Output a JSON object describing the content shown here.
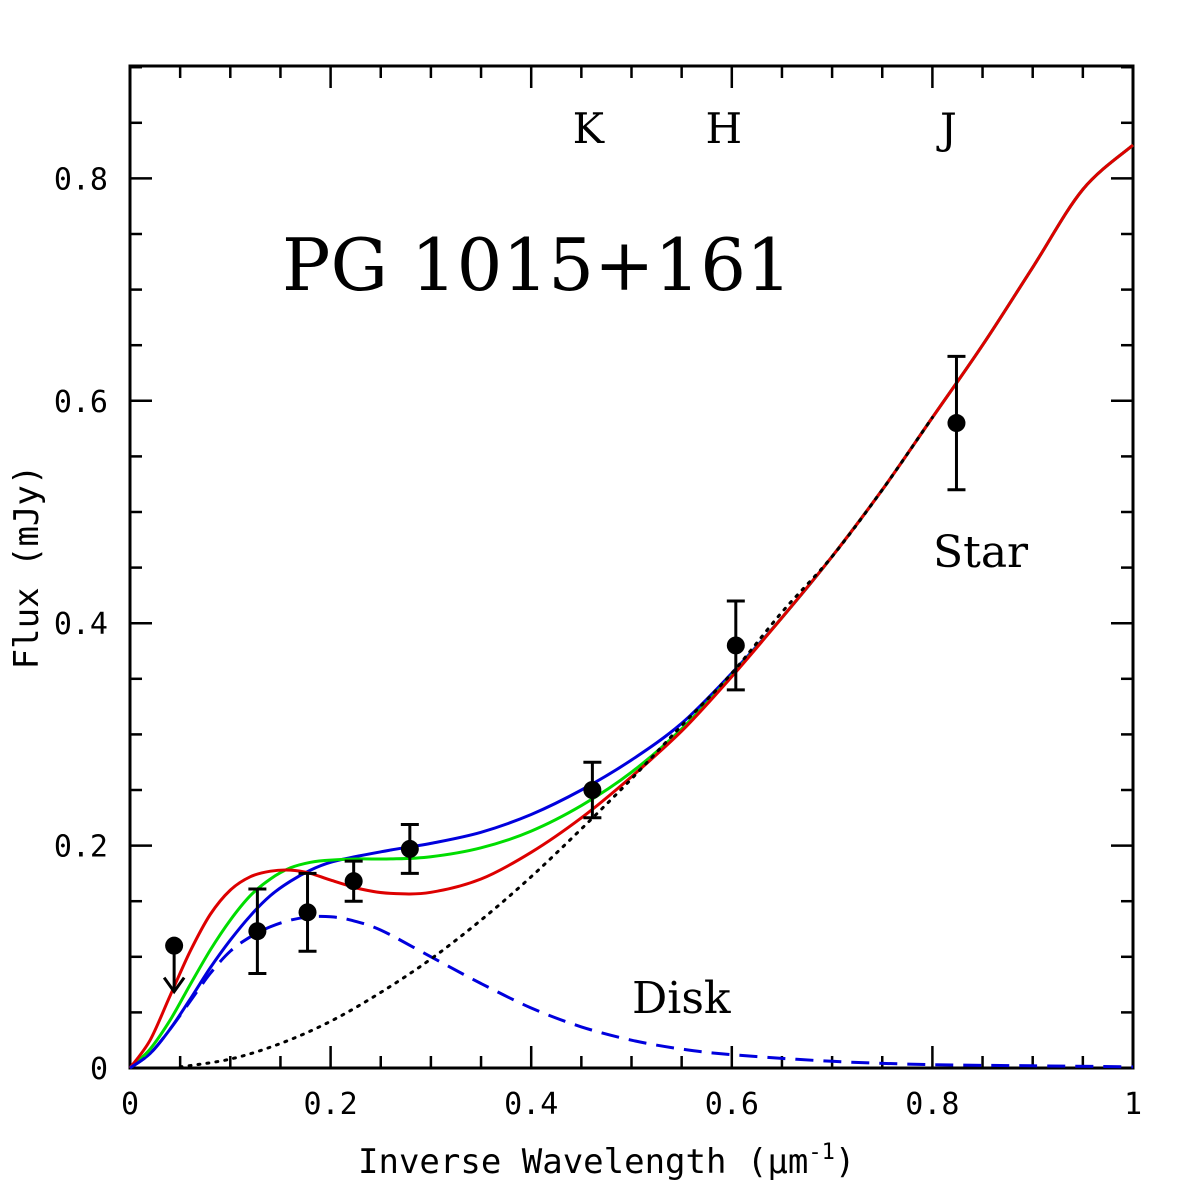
{
  "chart_data": {
    "type": "line",
    "title": "",
    "xlabel": "Inverse Wavelength (μm",
    "xlabel_exponent": "-1",
    "xlabel_close": ")",
    "ylabel": "Flux (mJy)",
    "xlim": [
      0,
      1
    ],
    "ylim": [
      0,
      0.9
    ],
    "xticks": [
      {
        "v": 0,
        "label": "0"
      },
      {
        "v": 0.2,
        "label": "0.2"
      },
      {
        "v": 0.4,
        "label": "0.4"
      },
      {
        "v": 0.6,
        "label": "0.6"
      },
      {
        "v": 0.8,
        "label": "0.8"
      },
      {
        "v": 1,
        "label": "1"
      }
    ],
    "yticks": [
      {
        "v": 0,
        "label": "0"
      },
      {
        "v": 0.2,
        "label": "0.2"
      },
      {
        "v": 0.4,
        "label": "0.4"
      },
      {
        "v": 0.6,
        "label": "0.6"
      },
      {
        "v": 0.8,
        "label": "0.8"
      }
    ],
    "grid": false,
    "annotations": {
      "object": "PG 1015+161",
      "star": "Star",
      "disk": "Disk",
      "bands": [
        {
          "label": "K",
          "x": 0.457
        },
        {
          "label": "H",
          "x": 0.592
        },
        {
          "label": "J",
          "x": 0.816
        }
      ]
    },
    "points": [
      {
        "x": 0.044,
        "y": 0.11,
        "upper_limit": true
      },
      {
        "x": 0.127,
        "y": 0.123,
        "yerr": 0.038
      },
      {
        "x": 0.177,
        "y": 0.14,
        "yerr": 0.035
      },
      {
        "x": 0.223,
        "y": 0.168,
        "yerr": 0.018
      },
      {
        "x": 0.279,
        "y": 0.197,
        "yerr": 0.022
      },
      {
        "x": 0.461,
        "y": 0.25,
        "yerr": 0.025
      },
      {
        "x": 0.604,
        "y": 0.38,
        "yerr": 0.04
      },
      {
        "x": 0.824,
        "y": 0.58,
        "yerr": 0.06
      }
    ],
    "series": [
      {
        "color": "#0000dd",
        "style": "solid",
        "x": [
          0,
          0.02,
          0.04,
          0.06,
          0.08,
          0.1,
          0.12,
          0.14,
          0.16,
          0.18,
          0.2,
          0.23,
          0.26,
          0.3,
          0.35,
          0.4,
          0.45,
          0.5,
          0.55,
          0.6,
          0.65,
          0.7,
          0.75,
          0.8,
          0.85,
          0.9,
          0.95,
          1.0
        ],
        "y": [
          0,
          0.013,
          0.035,
          0.062,
          0.09,
          0.115,
          0.137,
          0.155,
          0.168,
          0.178,
          0.185,
          0.191,
          0.196,
          0.202,
          0.212,
          0.228,
          0.25,
          0.277,
          0.31,
          0.355,
          0.405,
          0.46,
          0.52,
          0.585,
          0.65,
          0.72,
          0.79,
          0.83
        ]
      },
      {
        "color": "#00dd00",
        "style": "solid",
        "x": [
          0,
          0.02,
          0.04,
          0.06,
          0.08,
          0.1,
          0.12,
          0.14,
          0.16,
          0.18,
          0.2,
          0.23,
          0.26,
          0.3,
          0.35,
          0.4,
          0.45,
          0.5,
          0.55,
          0.6,
          0.65,
          0.7,
          0.75,
          0.8,
          0.85,
          0.9,
          0.95,
          1.0
        ],
        "y": [
          0,
          0.017,
          0.043,
          0.075,
          0.106,
          0.133,
          0.155,
          0.17,
          0.18,
          0.185,
          0.187,
          0.188,
          0.188,
          0.19,
          0.198,
          0.213,
          0.236,
          0.266,
          0.305,
          0.353,
          0.405,
          0.46,
          0.52,
          0.585,
          0.65,
          0.72,
          0.79,
          0.83
        ]
      },
      {
        "color": "#dd0000",
        "style": "solid",
        "x": [
          0,
          0.02,
          0.04,
          0.06,
          0.08,
          0.1,
          0.12,
          0.14,
          0.16,
          0.18,
          0.2,
          0.23,
          0.26,
          0.3,
          0.35,
          0.4,
          0.45,
          0.5,
          0.55,
          0.6,
          0.65,
          0.7,
          0.75,
          0.8,
          0.85,
          0.9,
          0.95,
          1.0
        ],
        "y": [
          0,
          0.025,
          0.065,
          0.105,
          0.138,
          0.16,
          0.172,
          0.177,
          0.178,
          0.175,
          0.169,
          0.161,
          0.157,
          0.158,
          0.17,
          0.194,
          0.225,
          0.262,
          0.303,
          0.352,
          0.405,
          0.46,
          0.52,
          0.585,
          0.65,
          0.72,
          0.79,
          0.83
        ]
      },
      {
        "color": "#0000dd",
        "style": "dashed",
        "x": [
          0,
          0.02,
          0.04,
          0.06,
          0.08,
          0.1,
          0.12,
          0.14,
          0.16,
          0.18,
          0.2,
          0.22,
          0.25,
          0.3,
          0.35,
          0.4,
          0.45,
          0.5,
          0.55,
          0.6,
          0.7,
          0.8,
          0.9,
          1.0
        ],
        "y": [
          0,
          0.013,
          0.035,
          0.06,
          0.085,
          0.105,
          0.118,
          0.127,
          0.133,
          0.136,
          0.136,
          0.133,
          0.124,
          0.1,
          0.076,
          0.054,
          0.037,
          0.025,
          0.017,
          0.012,
          0.006,
          0.003,
          0.002,
          0.001
        ]
      },
      {
        "color": "#000000",
        "style": "dotted",
        "x": [
          0.05,
          0.1,
          0.15,
          0.2,
          0.25,
          0.3,
          0.35,
          0.4,
          0.45,
          0.5,
          0.55,
          0.6,
          0.65,
          0.7,
          0.75,
          0.8
        ],
        "y": [
          0.001,
          0.008,
          0.022,
          0.042,
          0.068,
          0.098,
          0.133,
          0.172,
          0.215,
          0.26,
          0.308,
          0.355,
          0.41,
          0.46,
          0.52,
          0.585
        ]
      }
    ]
  }
}
